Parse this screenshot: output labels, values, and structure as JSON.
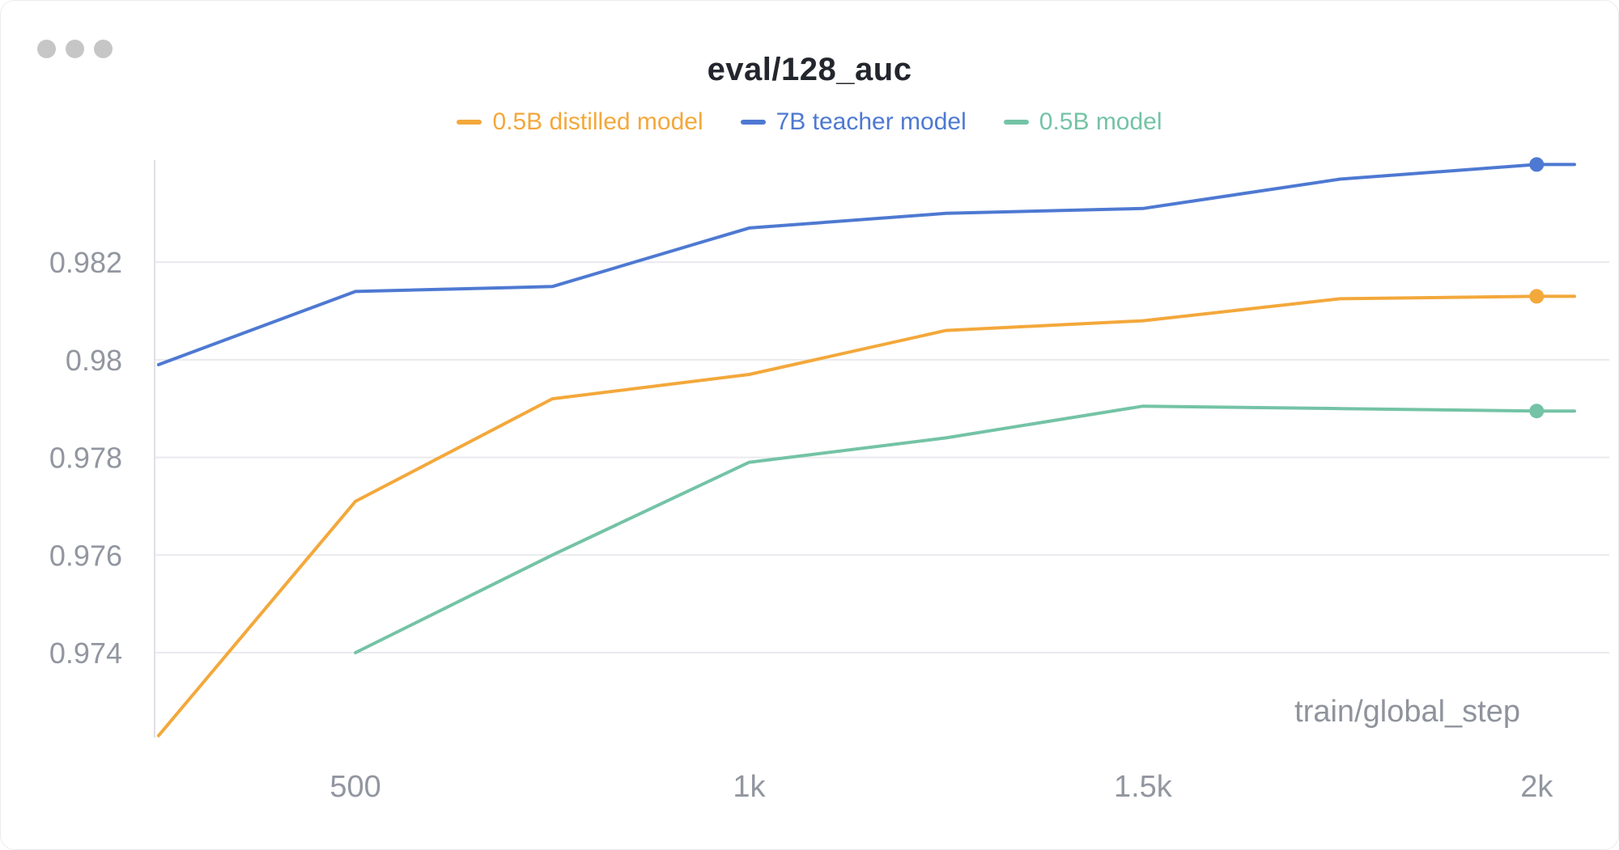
{
  "window": {
    "dot_count": 3
  },
  "chart_data": {
    "type": "line",
    "title": "eval/128_auc",
    "xlabel": "train/global_step",
    "x": [
      250,
      500,
      750,
      1000,
      1250,
      1500,
      1750,
      2000
    ],
    "series": [
      {
        "name": "0.5B distilled model",
        "color": "#f3a83b",
        "values": [
          0.9723,
          0.9771,
          0.9792,
          0.9797,
          0.9806,
          0.9808,
          0.98125,
          0.9813
        ]
      },
      {
        "name": "7B teacher model",
        "color": "#4e79d2",
        "values": [
          0.9799,
          0.9814,
          0.9815,
          0.9827,
          0.983,
          0.9831,
          0.9837,
          0.984
        ]
      },
      {
        "name": "0.5B model",
        "color": "#74c3a6",
        "values": [
          null,
          0.974,
          0.976,
          0.9779,
          0.9784,
          0.97905,
          0.979,
          0.97895
        ]
      }
    ],
    "xticks": [
      {
        "value": 500,
        "label": "500"
      },
      {
        "value": 1000,
        "label": "1k"
      },
      {
        "value": 1500,
        "label": "1.5k"
      },
      {
        "value": 2000,
        "label": "2k"
      }
    ],
    "yticks": [
      {
        "value": 0.974,
        "label": "0.974"
      },
      {
        "value": 0.976,
        "label": "0.976"
      },
      {
        "value": 0.978,
        "label": "0.978"
      },
      {
        "value": 0.98,
        "label": "0.98"
      },
      {
        "value": 0.982,
        "label": "0.982"
      }
    ],
    "xlim": [
      245,
      2048
    ],
    "ylim": [
      0.97226,
      0.98409
    ],
    "grid": "horizontal",
    "legend_position": "top-center",
    "marker_at_last_point": true,
    "extend_flat_to_right_edge": true
  },
  "colors": {
    "grid": "#e9eaee",
    "axis": "#dfe0e5",
    "tick_text": "#9296a0",
    "axis_title_text": "#8f939c",
    "title_text": "#23262d",
    "window_dot": "#c6c6c6",
    "background": "#ffffff"
  }
}
